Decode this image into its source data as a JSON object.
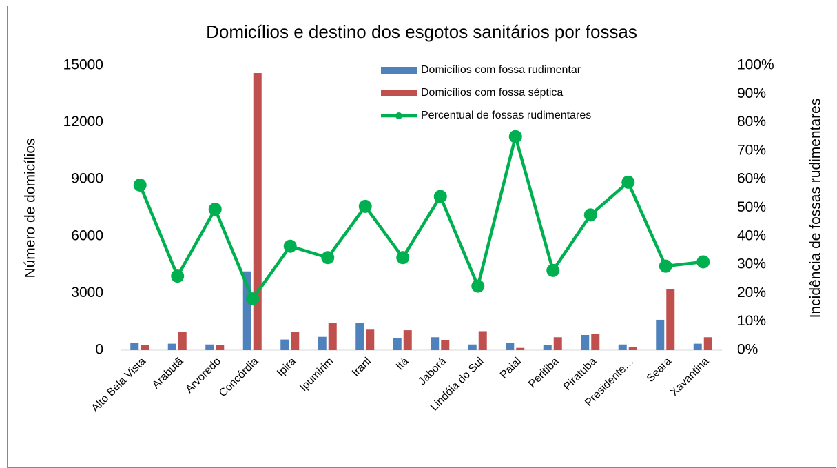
{
  "chart_data": {
    "type": "bar_line",
    "title": "Domicílios e destino dos esgotos sanitários por fossas",
    "y_label": "Número de domicílios",
    "y2_label": "Incidência de fossas rudimentares",
    "categories": [
      "Alto Bela Vista",
      "Arabutã",
      "Arvoredo",
      "Concórdia",
      "Ipira",
      "Ipumirim",
      "Irani",
      "Itá",
      "Jaborá",
      "Lindóia do Sul",
      "Paial",
      "Peritiba",
      "Piratuba",
      "Presidente…",
      "Seara",
      "Xavantina"
    ],
    "series": [
      {
        "name": "Domicílios com fossa rudimentar",
        "color": "#4f81bd",
        "type": "bar",
        "values": [
          390,
          340,
          300,
          4150,
          560,
          700,
          1450,
          650,
          680,
          300,
          390,
          270,
          800,
          300,
          1600,
          340
        ]
      },
      {
        "name": "Domicílios com fossa séptica",
        "color": "#c0504d",
        "type": "bar",
        "values": [
          260,
          950,
          270,
          14600,
          970,
          1420,
          1080,
          1050,
          530,
          1000,
          120,
          680,
          850,
          180,
          3200,
          680
        ]
      },
      {
        "name": "Percentual de fossas rudimentares",
        "color": "#00b050",
        "type": "line",
        "axis": "y2",
        "values": [
          58,
          26,
          49.5,
          18,
          36.5,
          32.5,
          50.5,
          32.5,
          54,
          22.5,
          75,
          28,
          47.5,
          59,
          29.5,
          31
        ]
      }
    ],
    "ylim": [
      0,
      15000
    ],
    "yticks": [
      0,
      3000,
      6000,
      9000,
      12000,
      15000
    ],
    "y2lim": [
      0,
      100
    ],
    "y2ticks": [
      {
        "value": 0,
        "label": "0%"
      },
      {
        "value": 10,
        "label": "10%"
      },
      {
        "value": 20,
        "label": "20%"
      },
      {
        "value": 30,
        "label": "30%"
      },
      {
        "value": 40,
        "label": "40%"
      },
      {
        "value": 50,
        "label": "50%"
      },
      {
        "value": 60,
        "label": "60%"
      },
      {
        "value": 70,
        "label": "70%"
      },
      {
        "value": 80,
        "label": "80%"
      },
      {
        "value": 90,
        "label": "90%"
      },
      {
        "value": 100,
        "label": "100%"
      }
    ],
    "legend": "top-right"
  }
}
